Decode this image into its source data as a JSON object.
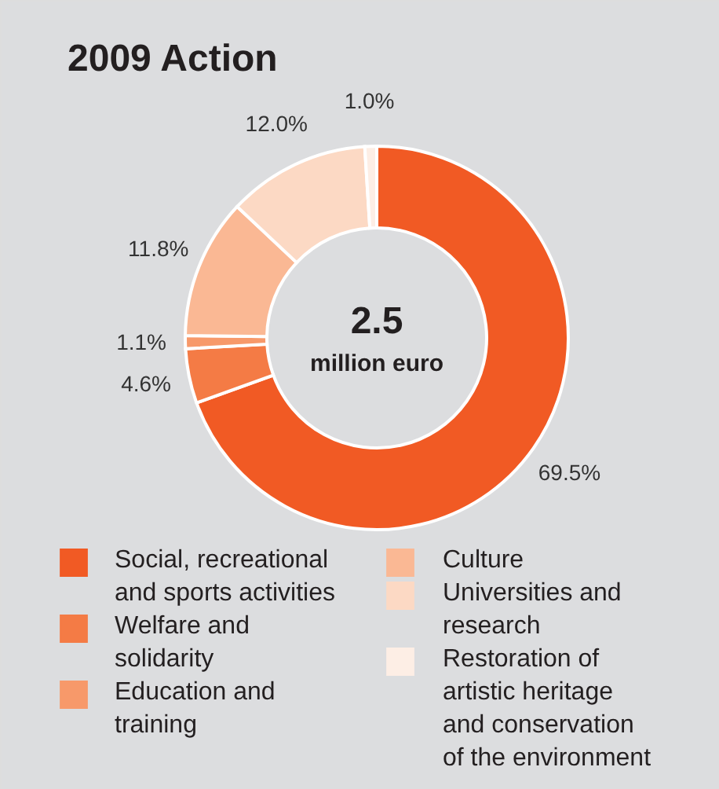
{
  "chart_data": {
    "type": "donut",
    "title": "2009 Action",
    "categories": [
      "Social, recreational and sports activities",
      "Welfare and solidarity",
      "Education and training",
      "Culture",
      "Universities and research",
      "Restoration of artistic heritage and conservation of the environment"
    ],
    "values": [
      69.5,
      4.6,
      1.1,
      11.8,
      12.0,
      1.0
    ],
    "value_labels": [
      "69.5%",
      "4.6%",
      "1.1%",
      "11.8%",
      "12.0%",
      "1.0%"
    ],
    "colors": [
      "#f15a24",
      "#f47b45",
      "#f7996a",
      "#fab894",
      "#fcd9c4",
      "#fdeee5"
    ],
    "annotations": [
      "2.5",
      "million euro"
    ],
    "legend": "bottom"
  }
}
